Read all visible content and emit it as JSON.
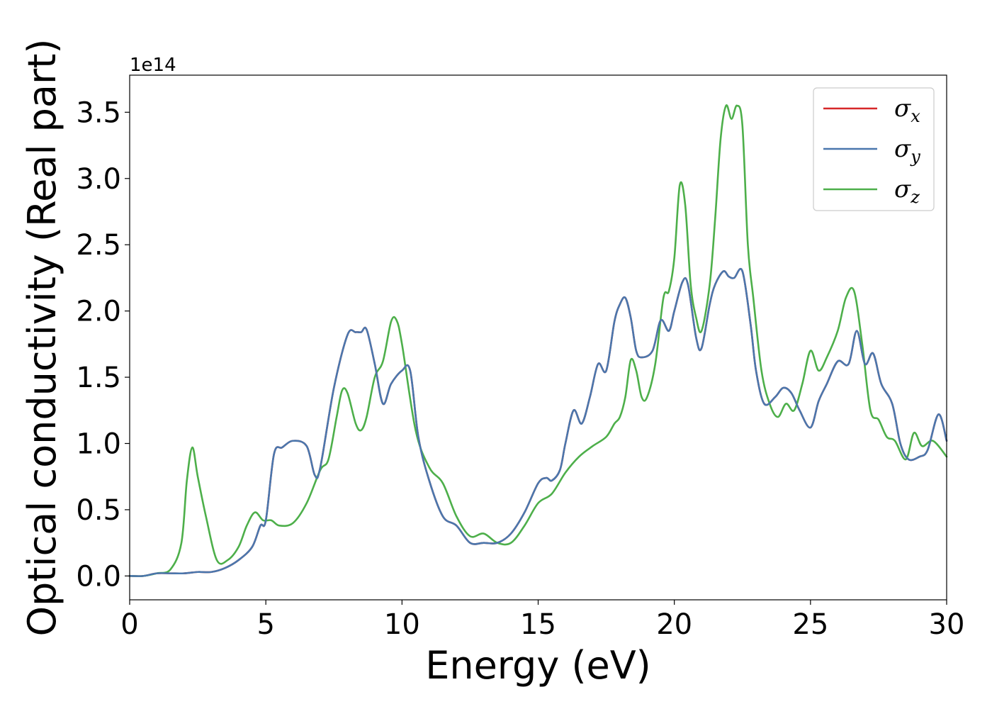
{
  "chart_data": {
    "type": "line",
    "title": "",
    "xlabel": "Energy (eV)",
    "ylabel": "Optical conductivity (Real part)",
    "y_offset_label": "1e14",
    "xlim": [
      0,
      30
    ],
    "ylim": [
      -0.18,
      3.78
    ],
    "xticks": [
      0,
      5,
      10,
      15,
      20,
      25,
      30
    ],
    "xtick_labels": [
      "0",
      "5",
      "10",
      "15",
      "20",
      "25",
      "30"
    ],
    "yticks": [
      0.0,
      0.5,
      1.0,
      1.5,
      2.0,
      2.5,
      3.0,
      3.5
    ],
    "ytick_labels": [
      "0.0",
      "0.5",
      "1.0",
      "1.5",
      "2.0",
      "2.5",
      "3.0",
      "3.5"
    ],
    "grid": false,
    "legend_position": "top-right",
    "series": [
      {
        "name": "σx",
        "legend_base": "σ",
        "legend_sub": "x",
        "color": "#d62728",
        "x": [
          0,
          0.5,
          1,
          1.5,
          2,
          2.5,
          3,
          3.5,
          4,
          4.5,
          4.8,
          5,
          5.3,
          5.6,
          6,
          6.5,
          6.8,
          7,
          7.5,
          8,
          8.3,
          8.5,
          8.7,
          9,
          9.3,
          9.6,
          10,
          10.3,
          10.6,
          11,
          11.5,
          12,
          12.5,
          13,
          13.5,
          14,
          14.5,
          15,
          15.3,
          15.5,
          15.8,
          16,
          16.3,
          16.6,
          16.9,
          17.2,
          17.5,
          17.8,
          18,
          18.2,
          18.4,
          18.6,
          18.8,
          19.2,
          19.5,
          19.8,
          20,
          20.3,
          20.5,
          20.8,
          21,
          21.3,
          21.5,
          21.8,
          22,
          22.2,
          22.5,
          22.8,
          23,
          23.3,
          23.7,
          24,
          24.3,
          24.6,
          25,
          25.3,
          25.6,
          26,
          26.4,
          26.7,
          27,
          27.3,
          27.6,
          28,
          28.3,
          28.6,
          29,
          29.3,
          29.7,
          30
        ],
        "y": [
          0,
          0,
          0.02,
          0.02,
          0.02,
          0.03,
          0.03,
          0.06,
          0.12,
          0.22,
          0.38,
          0.42,
          0.92,
          0.97,
          1.02,
          0.98,
          0.76,
          0.82,
          1.42,
          1.82,
          1.84,
          1.84,
          1.86,
          1.6,
          1.3,
          1.45,
          1.55,
          1.55,
          1.05,
          0.72,
          0.45,
          0.38,
          0.25,
          0.25,
          0.25,
          0.32,
          0.48,
          0.7,
          0.74,
          0.72,
          0.8,
          1.0,
          1.25,
          1.15,
          1.35,
          1.6,
          1.55,
          1.92,
          2.05,
          2.1,
          1.95,
          1.7,
          1.65,
          1.7,
          1.93,
          1.85,
          2.0,
          2.22,
          2.2,
          1.8,
          1.72,
          2.05,
          2.2,
          2.3,
          2.26,
          2.25,
          2.3,
          1.9,
          1.55,
          1.3,
          1.35,
          1.42,
          1.38,
          1.25,
          1.12,
          1.32,
          1.45,
          1.62,
          1.6,
          1.85,
          1.6,
          1.68,
          1.45,
          1.3,
          1.0,
          0.88,
          0.9,
          0.95,
          1.22,
          1.02
        ]
      },
      {
        "name": "σy",
        "legend_base": "σ",
        "legend_sub": "y",
        "color": "#4a77ad",
        "x": [
          0,
          0.5,
          1,
          1.5,
          2,
          2.5,
          3,
          3.5,
          4,
          4.5,
          4.8,
          5,
          5.3,
          5.6,
          6,
          6.5,
          6.8,
          7,
          7.5,
          8,
          8.3,
          8.5,
          8.7,
          9,
          9.3,
          9.6,
          10,
          10.3,
          10.6,
          11,
          11.5,
          12,
          12.5,
          13,
          13.5,
          14,
          14.5,
          15,
          15.3,
          15.5,
          15.8,
          16,
          16.3,
          16.6,
          16.9,
          17.2,
          17.5,
          17.8,
          18,
          18.2,
          18.4,
          18.6,
          18.8,
          19.2,
          19.5,
          19.8,
          20,
          20.3,
          20.5,
          20.8,
          21,
          21.3,
          21.5,
          21.8,
          22,
          22.2,
          22.5,
          22.8,
          23,
          23.3,
          23.7,
          24,
          24.3,
          24.6,
          25,
          25.3,
          25.6,
          26,
          26.4,
          26.7,
          27,
          27.3,
          27.6,
          28,
          28.3,
          28.6,
          29,
          29.3,
          29.7,
          30
        ],
        "y": [
          0,
          0,
          0.02,
          0.02,
          0.02,
          0.03,
          0.03,
          0.06,
          0.12,
          0.22,
          0.38,
          0.42,
          0.92,
          0.97,
          1.02,
          0.98,
          0.76,
          0.82,
          1.42,
          1.82,
          1.84,
          1.84,
          1.86,
          1.6,
          1.3,
          1.45,
          1.55,
          1.55,
          1.05,
          0.72,
          0.45,
          0.38,
          0.25,
          0.25,
          0.25,
          0.32,
          0.48,
          0.7,
          0.74,
          0.72,
          0.8,
          1.0,
          1.25,
          1.15,
          1.35,
          1.6,
          1.55,
          1.92,
          2.05,
          2.1,
          1.95,
          1.7,
          1.65,
          1.7,
          1.93,
          1.85,
          2.0,
          2.22,
          2.2,
          1.8,
          1.72,
          2.05,
          2.2,
          2.3,
          2.26,
          2.25,
          2.3,
          1.9,
          1.55,
          1.3,
          1.35,
          1.42,
          1.38,
          1.25,
          1.12,
          1.32,
          1.45,
          1.62,
          1.6,
          1.85,
          1.6,
          1.68,
          1.45,
          1.3,
          1.0,
          0.88,
          0.9,
          0.95,
          1.22,
          1.02
        ]
      },
      {
        "name": "σz",
        "legend_base": "σ",
        "legend_sub": "z",
        "color": "#4daf4a",
        "x": [
          0,
          0.5,
          1,
          1.5,
          1.9,
          2.1,
          2.3,
          2.5,
          2.8,
          3.2,
          3.6,
          4,
          4.3,
          4.6,
          4.9,
          5.2,
          5.5,
          6,
          6.5,
          7,
          7.3,
          7.6,
          7.8,
          8,
          8.3,
          8.5,
          8.7,
          9,
          9.3,
          9.6,
          9.8,
          10,
          10.5,
          11,
          11.5,
          12,
          12.5,
          13,
          13.5,
          14,
          14.5,
          15,
          15.5,
          16,
          16.5,
          17,
          17.5,
          17.8,
          18,
          18.2,
          18.4,
          18.6,
          18.8,
          19,
          19.3,
          19.6,
          19.8,
          20,
          20.2,
          20.4,
          20.6,
          20.8,
          21,
          21.3,
          21.5,
          21.7,
          21.9,
          22.1,
          22.3,
          22.5,
          22.7,
          22.9,
          23.2,
          23.5,
          23.8,
          24.1,
          24.4,
          24.7,
          25,
          25.3,
          25.6,
          26,
          26.3,
          26.6,
          26.9,
          27.2,
          27.5,
          27.8,
          28.1,
          28.5,
          28.8,
          29.1,
          29.5,
          30
        ],
        "y": [
          0,
          0,
          0.02,
          0.05,
          0.25,
          0.72,
          0.97,
          0.75,
          0.45,
          0.12,
          0.12,
          0.22,
          0.38,
          0.48,
          0.42,
          0.42,
          0.38,
          0.4,
          0.55,
          0.8,
          0.88,
          1.2,
          1.4,
          1.38,
          1.15,
          1.1,
          1.2,
          1.5,
          1.62,
          1.92,
          1.93,
          1.75,
          1.1,
          0.82,
          0.7,
          0.45,
          0.3,
          0.32,
          0.25,
          0.25,
          0.38,
          0.55,
          0.62,
          0.78,
          0.9,
          0.98,
          1.05,
          1.15,
          1.2,
          1.35,
          1.63,
          1.55,
          1.35,
          1.35,
          1.6,
          2.1,
          2.15,
          2.4,
          2.95,
          2.8,
          2.2,
          1.95,
          1.85,
          2.2,
          2.7,
          3.3,
          3.55,
          3.45,
          3.55,
          3.4,
          2.5,
          2.1,
          1.55,
          1.3,
          1.2,
          1.3,
          1.25,
          1.45,
          1.7,
          1.55,
          1.65,
          1.85,
          2.1,
          2.15,
          1.75,
          1.25,
          1.18,
          1.05,
          1.02,
          0.88,
          1.08,
          0.98,
          1.02,
          0.9
        ]
      }
    ]
  }
}
